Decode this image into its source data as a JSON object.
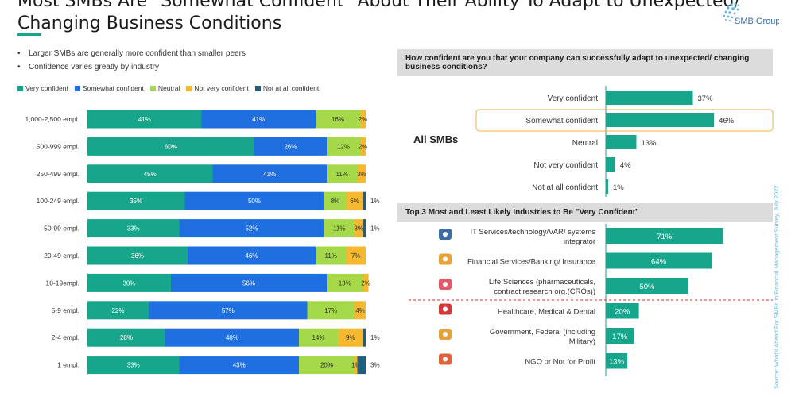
{
  "title": {
    "line1": "Most SMBs Are \"Somewhat Confident\" About Their Ability To Adapt to Unexpected/",
    "line2": "Changing Business Conditions"
  },
  "logo_text": "SMB Group",
  "bullets": [
    "Larger SMBs are generally more confident than smaller peers",
    "Confidence varies greatly by industry"
  ],
  "source": "Source: What's Ahead For SMBs in Financial Management Survey, July 2022",
  "chart_data": [
    {
      "type": "bar",
      "orientation": "horizontal",
      "stacked": true,
      "legend_position": "top",
      "categories": [
        "1,000-2,500 empl.",
        "500-999 empl.",
        "250-499 empl.",
        "100-249 empl.",
        "50-99 empl.",
        "20-49 empl.",
        "10-19empl.",
        "5-9 empl.",
        "2-4 empl.",
        "1 empl."
      ],
      "series": [
        {
          "name": "Very confident",
          "color": "#17a68c",
          "values": [
            41,
            60,
            45,
            35,
            33,
            36,
            30,
            22,
            28,
            33
          ]
        },
        {
          "name": "Somewhat confident",
          "color": "#1f6fe0",
          "values": [
            41,
            26,
            41,
            50,
            52,
            46,
            56,
            57,
            48,
            43
          ]
        },
        {
          "name": "Neutral",
          "color": "#a6d94a",
          "values": [
            16,
            12,
            11,
            8,
            11,
            11,
            13,
            17,
            14,
            20
          ]
        },
        {
          "name": "Not very confident",
          "color": "#f5b82e",
          "values": [
            2,
            2,
            3,
            6,
            3,
            7,
            2,
            4,
            9,
            1
          ]
        },
        {
          "name": "Not at all confident",
          "color": "#1e5f80",
          "values": [
            0,
            0,
            0,
            1,
            1,
            0,
            0,
            0,
            1,
            3
          ]
        }
      ],
      "value_labels": [
        [
          "41%",
          "41%",
          "16%",
          "2%",
          ""
        ],
        [
          "60%",
          "26%",
          "12%",
          "2%",
          ""
        ],
        [
          "45%",
          "41%",
          "11%",
          "3%",
          ""
        ],
        [
          "35%",
          "50%",
          "8%",
          "6%",
          "1%"
        ],
        [
          "33%",
          "52%",
          "11%",
          "3%",
          "1%"
        ],
        [
          "36%",
          "46%",
          "11%",
          "7%",
          ""
        ],
        [
          "30%",
          "56%",
          "13%",
          "2%",
          ""
        ],
        [
          "22%",
          "57%",
          "17%",
          "4%",
          ""
        ],
        [
          "28%",
          "48%",
          "14%",
          "9%",
          "1%"
        ],
        [
          "33%",
          "43%",
          "20%",
          "1%",
          "3%"
        ]
      ]
    },
    {
      "type": "bar",
      "orientation": "horizontal",
      "title": "How confident are you that your company can successfully adapt to unexpected/ changing business conditions?",
      "group_label": "All SMBs",
      "categories": [
        "Very confident",
        "Somewhat confident",
        "Neutral",
        "Not very confident",
        "Not at all confident"
      ],
      "values": [
        37,
        46,
        13,
        4,
        1
      ],
      "labels": [
        "37%",
        "46%",
        "13%",
        "4%",
        "1%"
      ],
      "highlight": "Somewhat confident",
      "color": "#17a68c"
    },
    {
      "type": "bar",
      "orientation": "horizontal",
      "title": "Top 3 Most and Least Likely Industries to Be \"Very Confident\"",
      "categories": [
        [
          "IT Services/technology/VAR/ systems",
          "integrator"
        ],
        [
          "Financial Services/Banking/ Insurance"
        ],
        [
          "Life Sciences (pharmaceuticals,",
          "contract research org.(CROs))"
        ],
        [
          "Healthcare, Medical & Dental"
        ],
        [
          "Government, Federal (including",
          "Military)"
        ],
        [
          "NGO or Not for Profit"
        ]
      ],
      "icons": [
        "computer-icon",
        "finance-icon",
        "life-sciences-icon",
        "healthcare-icon",
        "government-icon",
        "nonprofit-icon"
      ],
      "values": [
        71,
        64,
        50,
        20,
        17,
        13
      ],
      "labels": [
        "71%",
        "64%",
        "50%",
        "20%",
        "17%",
        "13%"
      ],
      "color": "#17a68c"
    }
  ]
}
